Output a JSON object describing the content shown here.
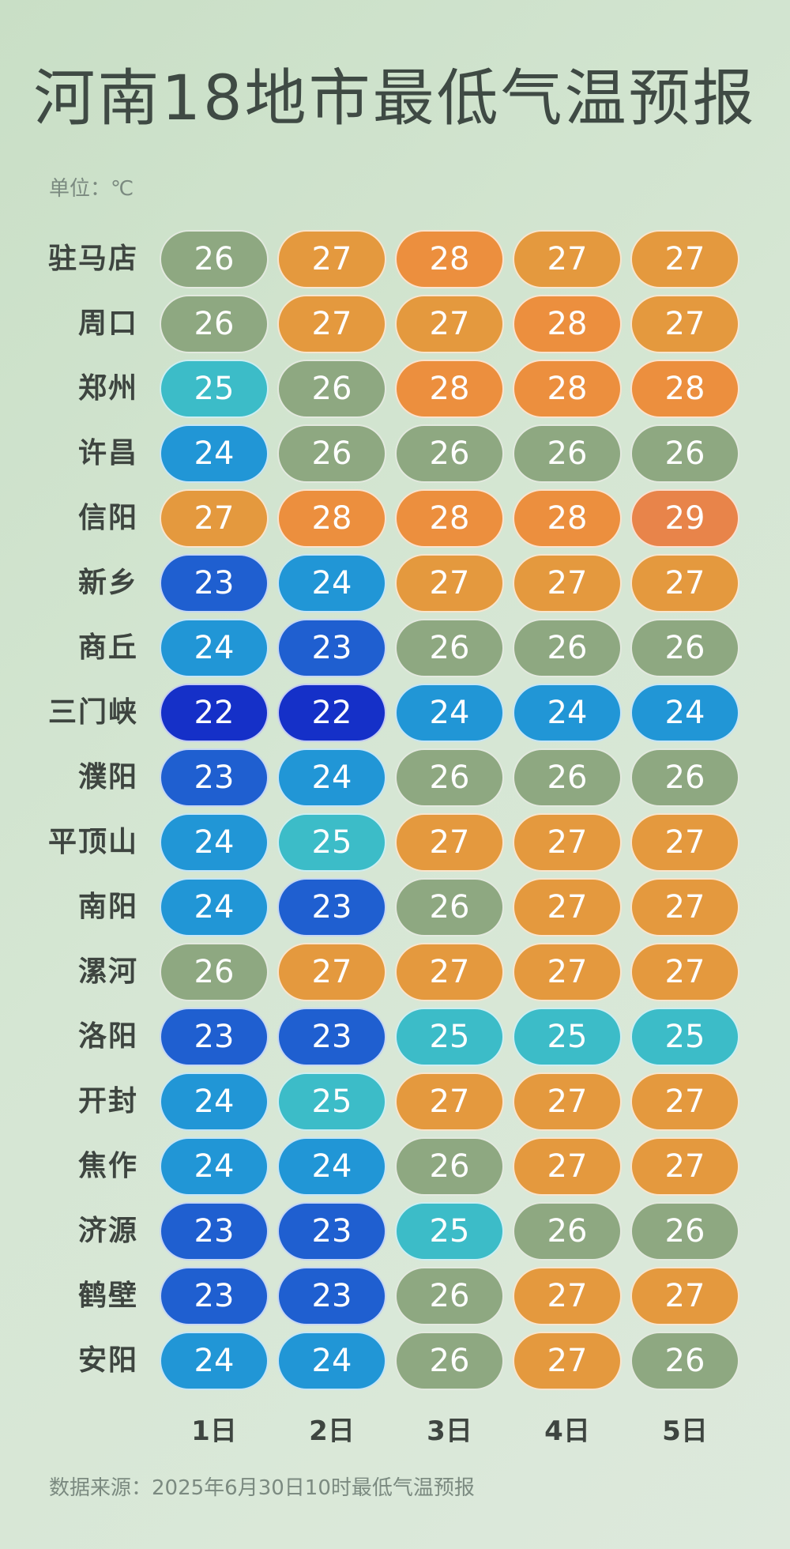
{
  "title": "河南18地市最低气温预报",
  "unit": "单位：℃",
  "source": "数据来源：2025年6月30日10时最低气温预报",
  "colors": {
    "22": "#1530c8",
    "23": "#1f5fd0",
    "24": "#2196d6",
    "25": "#3cbcc8",
    "26": "#8ea881",
    "27": "#e4993e",
    "28": "#ec8f3e",
    "29": "#e8844a"
  },
  "chart_data": {
    "type": "table",
    "categories": [
      "1日",
      "2日",
      "3日",
      "4日",
      "5日"
    ],
    "rows": [
      {
        "city": "驻马店",
        "values": [
          26,
          27,
          28,
          27,
          27
        ]
      },
      {
        "city": "周口",
        "values": [
          26,
          27,
          27,
          28,
          27
        ]
      },
      {
        "city": "郑州",
        "values": [
          25,
          26,
          28,
          28,
          28
        ]
      },
      {
        "city": "许昌",
        "values": [
          24,
          26,
          26,
          26,
          26
        ]
      },
      {
        "city": "信阳",
        "values": [
          27,
          28,
          28,
          28,
          29
        ]
      },
      {
        "city": "新乡",
        "values": [
          23,
          24,
          27,
          27,
          27
        ]
      },
      {
        "city": "商丘",
        "values": [
          24,
          23,
          26,
          26,
          26
        ]
      },
      {
        "city": "三门峡",
        "values": [
          22,
          22,
          24,
          24,
          24
        ]
      },
      {
        "city": "濮阳",
        "values": [
          23,
          24,
          26,
          26,
          26
        ]
      },
      {
        "city": "平顶山",
        "values": [
          24,
          25,
          27,
          27,
          27
        ]
      },
      {
        "city": "南阳",
        "values": [
          24,
          23,
          26,
          27,
          27
        ]
      },
      {
        "city": "漯河",
        "values": [
          26,
          27,
          27,
          27,
          27
        ]
      },
      {
        "city": "洛阳",
        "values": [
          23,
          23,
          25,
          25,
          25
        ]
      },
      {
        "city": "开封",
        "values": [
          24,
          25,
          27,
          27,
          27
        ]
      },
      {
        "city": "焦作",
        "values": [
          24,
          24,
          26,
          27,
          27
        ]
      },
      {
        "city": "济源",
        "values": [
          23,
          23,
          25,
          26,
          26
        ]
      },
      {
        "city": "鹤壁",
        "values": [
          23,
          23,
          26,
          27,
          27
        ]
      },
      {
        "city": "安阳",
        "values": [
          24,
          24,
          26,
          27,
          26
        ]
      }
    ]
  }
}
